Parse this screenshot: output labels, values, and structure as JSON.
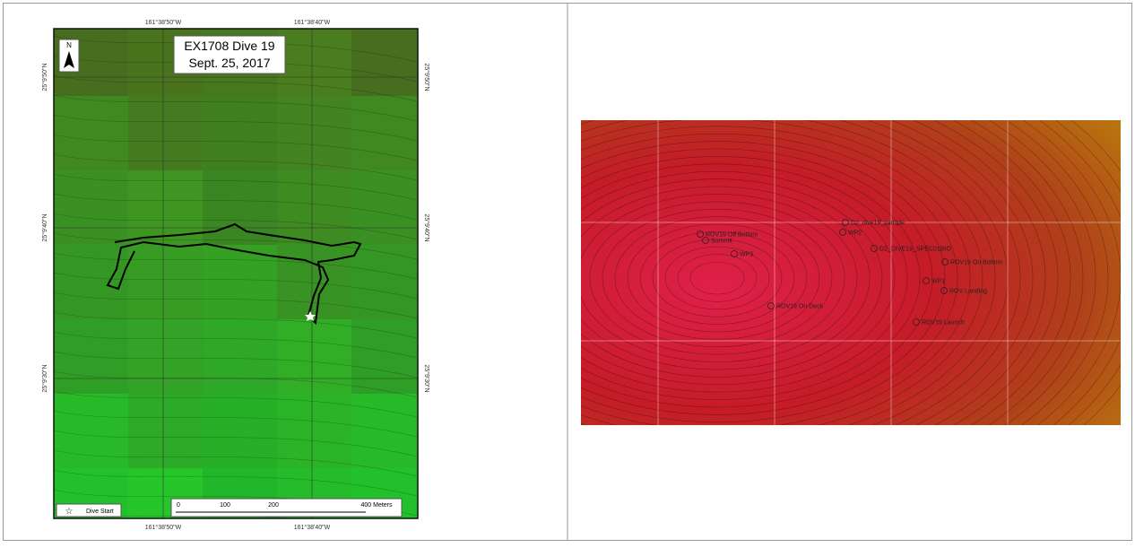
{
  "left_map": {
    "title": "EX1708 Dive 19",
    "date": "Sept. 25, 2017",
    "north": "N",
    "lon_labels": [
      "161°38'50\"W",
      "161°38'40\"W"
    ],
    "lat_labels": [
      "25°9'50\"N",
      "25°9'40\"N",
      "25°9'30\"N"
    ],
    "legend": "Dive Start",
    "scale_labels": [
      "0",
      "100",
      "200",
      "400 Meters"
    ]
  },
  "right_map": {
    "labels": [
      "ROV19 Off Bottom",
      "Summit",
      "WP3",
      "D2_dive19_sample",
      "WP2",
      "D2_DIVE19_SPEC01BIO",
      "ROV19 On Bottom",
      "WP1",
      "ROV Landing",
      "ROV19 On Deck",
      "ROV19 Launch"
    ]
  }
}
